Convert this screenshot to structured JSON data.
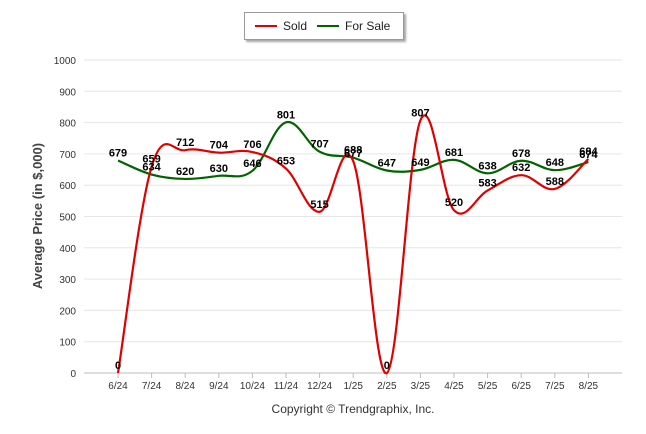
{
  "legend": {
    "position": "top-center"
  },
  "ylabel": "Average Price (in $,000)",
  "copyright": "Copyright © Trendgraphix, Inc.",
  "colors": {
    "sold": "#e00000",
    "for_sale": "#006400",
    "grid": "#e6e6e6"
  },
  "chart_data": {
    "type": "line",
    "categories": [
      "6/24",
      "7/24",
      "8/24",
      "9/24",
      "10/24",
      "11/24",
      "12/24",
      "1/25",
      "2/25",
      "3/25",
      "4/25",
      "5/25",
      "6/25",
      "7/25",
      "8/25"
    ],
    "series": [
      {
        "name": "Sold",
        "color": "#e00000",
        "values": [
          0,
          659,
          712,
          704,
          706,
          653,
          515,
          677,
          0,
          807,
          520,
          583,
          632,
          588,
          684
        ]
      },
      {
        "name": "For Sale",
        "color": "#006400",
        "values": [
          679,
          634,
          620,
          630,
          646,
          801,
          707,
          688,
          647,
          649,
          681,
          638,
          678,
          648,
          674
        ]
      }
    ],
    "xlabel": "",
    "ylabel": "Average Price (in $,000)",
    "ylim": [
      0,
      1000
    ],
    "yticks": [
      0,
      100,
      200,
      300,
      400,
      500,
      600,
      700,
      800,
      900,
      1000
    ],
    "grid": true,
    "data_labels": true,
    "curve": "smooth"
  }
}
